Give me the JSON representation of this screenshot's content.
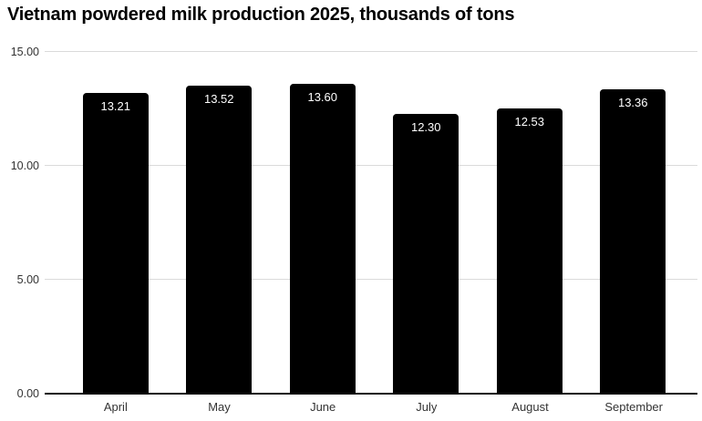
{
  "chart_data": {
    "type": "bar",
    "title": "Vietnam powdered milk production 2025, thousands of tons",
    "categories": [
      "April",
      "May",
      "June",
      "July",
      "August",
      "September"
    ],
    "values": [
      13.21,
      13.52,
      13.6,
      12.3,
      12.53,
      13.36
    ],
    "value_labels": [
      "13.21",
      "13.52",
      "13.60",
      "12.30",
      "12.53",
      "13.36"
    ],
    "xlabel": "",
    "ylabel": "",
    "ylim": [
      0,
      15
    ],
    "yticks": [
      0,
      5,
      10,
      15
    ],
    "ytick_labels": [
      "0.00",
      "5.00",
      "10.00",
      "15.00"
    ],
    "grid": "horizontal",
    "legend_position": "none",
    "colors": {
      "bar": "#000000",
      "bar_label": "#ffffff",
      "gridline": "#dadada",
      "axis_line": "#111111",
      "tick_text": "#333333",
      "title_text": "#000000",
      "background": "#ffffff"
    }
  }
}
